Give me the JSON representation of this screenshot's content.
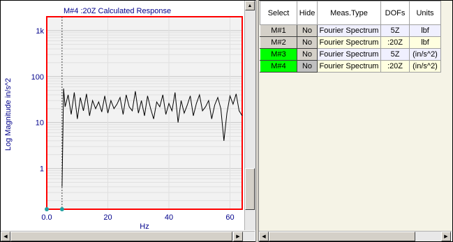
{
  "plot": {
    "title": "M#4 :20Z Calculated Response",
    "ylabel": "Log Magnitude in/s^2",
    "xlabel": "Hz",
    "y_ticks": [
      "1k",
      "100",
      "10",
      "1"
    ],
    "x_ticks": [
      "0.0",
      "20",
      "40",
      "60"
    ],
    "colors": {
      "border": "#ff0000",
      "trace": "#000000",
      "labels": "#00008b",
      "grid": "#d8d8d8"
    }
  },
  "chart_data": {
    "type": "line",
    "title": "M#4 :20Z Calculated Response",
    "xlabel": "Hz",
    "ylabel": "Log Magnitude in/s^2",
    "xlim": [
      0,
      64
    ],
    "ylim": [
      0.13,
      2000
    ],
    "yscale": "log",
    "grid": true,
    "cursor_x": 5,
    "x": [
      5,
      5.5,
      6,
      7,
      8,
      9,
      10,
      11,
      12,
      13,
      14,
      15,
      16,
      17,
      18,
      19,
      20,
      21,
      22,
      23,
      24,
      25,
      26,
      27,
      28,
      29,
      30,
      31,
      32,
      33,
      34,
      35,
      36,
      37,
      38,
      39,
      40,
      41,
      42,
      43,
      44,
      45,
      46,
      47,
      48,
      49,
      50,
      51,
      52,
      53,
      54,
      55,
      56,
      57,
      58,
      59,
      60,
      61,
      62,
      63,
      64
    ],
    "y": [
      0.4,
      55,
      22,
      40,
      15,
      45,
      12,
      35,
      18,
      42,
      14,
      30,
      20,
      28,
      17,
      38,
      16,
      30,
      20,
      25,
      35,
      15,
      40,
      22,
      18,
      48,
      16,
      30,
      14,
      38,
      20,
      12,
      28,
      22,
      40,
      15,
      26,
      18,
      45,
      10,
      30,
      16,
      24,
      38,
      14,
      26,
      40,
      18,
      22,
      30,
      12,
      24,
      35,
      20,
      4,
      16,
      38,
      25,
      42,
      18,
      14
    ]
  },
  "table": {
    "headers": {
      "select": "Select",
      "hide": "Hide",
      "meas_type": "Meas.Type",
      "dofs": "DOFs",
      "units": "Units"
    },
    "rows": [
      {
        "select": "M#1",
        "hide": "No",
        "meas_type": "Fourier Spectrum",
        "dofs": "5Z",
        "units": "lbf"
      },
      {
        "select": "M#2",
        "hide": "No",
        "meas_type": "Fourier Spectrum",
        "dofs": ":20Z",
        "units": "lbf"
      },
      {
        "select": "M#3",
        "hide": "No",
        "meas_type": "Fourier Spectrum",
        "dofs": "5Z",
        "units": "(in/s^2)"
      },
      {
        "select": "M#4",
        "hide": "No",
        "meas_type": "Fourier Spectrum",
        "dofs": ":20Z",
        "units": "(in/s^2)"
      }
    ]
  }
}
